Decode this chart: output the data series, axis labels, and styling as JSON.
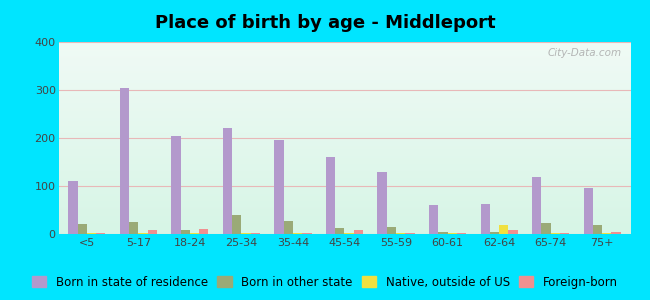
{
  "title": "Place of birth by age - Middleport",
  "background_outer": "#00e5ff",
  "categories": [
    "<5",
    "5-17",
    "18-24",
    "25-34",
    "35-44",
    "45-54",
    "55-59",
    "60-61",
    "62-64",
    "65-74",
    "75+"
  ],
  "series": {
    "born_in_state": {
      "label": "Born in state of residence",
      "color": "#b399cc",
      "values": [
        110,
        305,
        205,
        220,
        195,
        160,
        130,
        60,
        62,
        118,
        95
      ]
    },
    "born_other_state": {
      "label": "Born in other state",
      "color": "#9aaa77",
      "values": [
        20,
        25,
        8,
        40,
        28,
        12,
        15,
        5,
        5,
        22,
        18
      ]
    },
    "native_outside_us": {
      "label": "Native, outside of US",
      "color": "#f0e040",
      "values": [
        3,
        3,
        3,
        3,
        3,
        3,
        3,
        3,
        18,
        3,
        3
      ]
    },
    "foreign_born": {
      "label": "Foreign-born",
      "color": "#f09090",
      "values": [
        3,
        8,
        10,
        3,
        3,
        8,
        3,
        3,
        8,
        3,
        5
      ]
    }
  },
  "ylim": [
    0,
    400
  ],
  "yticks": [
    0,
    100,
    200,
    300,
    400
  ],
  "bar_width": 0.18,
  "title_fontsize": 13,
  "legend_fontsize": 8.5,
  "tick_fontsize": 8,
  "watermark": "City-Data.com",
  "grid_color": "#e8b8b8"
}
